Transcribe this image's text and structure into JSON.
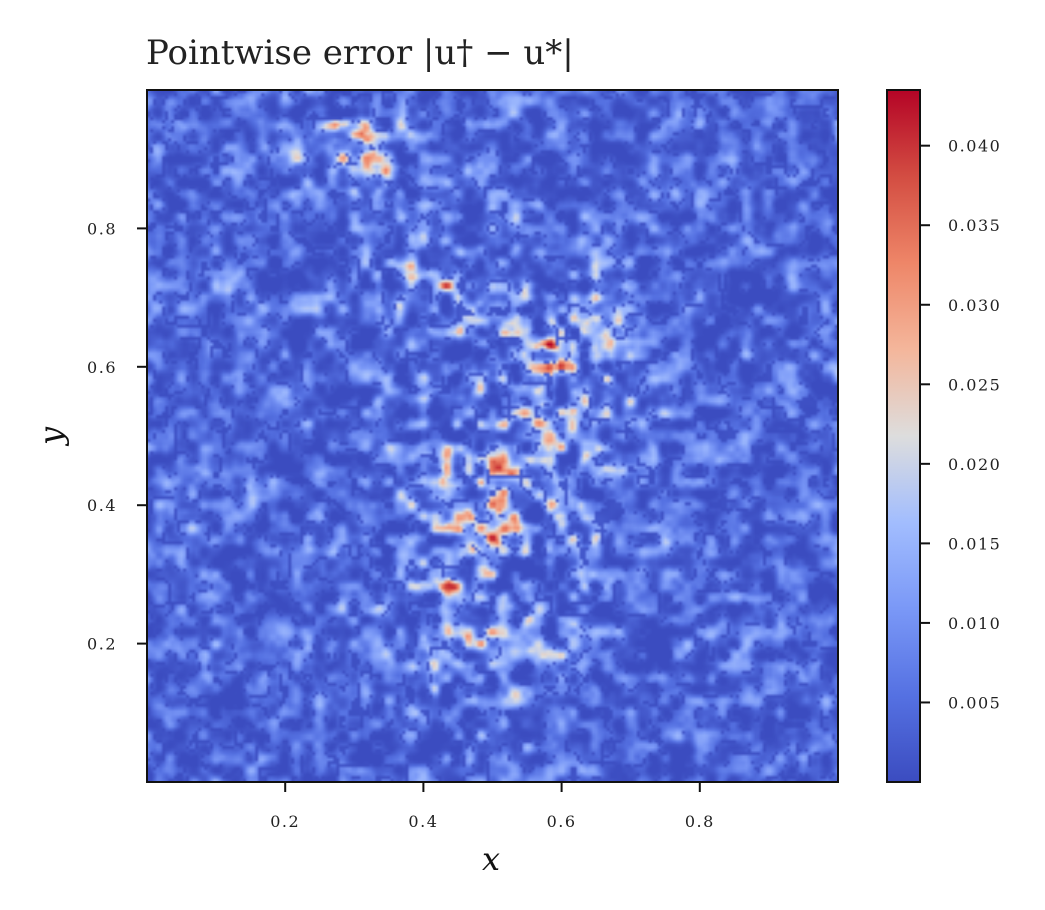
{
  "chart_data": {
    "type": "heatmap",
    "title": "Pointwise error |u† − u*|",
    "xlabel": "x",
    "ylabel": "y",
    "xlim": [
      0.0,
      1.0
    ],
    "ylim": [
      0.0,
      1.0
    ],
    "xticks": [
      0.2,
      0.4,
      0.6,
      0.8
    ],
    "yticks": [
      0.2,
      0.4,
      0.6,
      0.8
    ],
    "xtick_labels": [
      "0.2",
      "0.4",
      "0.6",
      "0.8"
    ],
    "ytick_labels": [
      "0.2",
      "0.4",
      "0.6",
      "0.8"
    ],
    "colormap": "coolwarm",
    "colorbar": {
      "min": 0.0,
      "max": 0.0435,
      "ticks": [
        0.005,
        0.01,
        0.015,
        0.02,
        0.025,
        0.03,
        0.035,
        0.04
      ],
      "tick_labels": [
        "0.005",
        "0.010",
        "0.015",
        "0.020",
        "0.025",
        "0.030",
        "0.035",
        "0.040"
      ]
    },
    "high_error_regions": [
      {
        "x": 0.53,
        "y": 0.47,
        "peak": 0.035
      },
      {
        "x": 0.63,
        "y": 0.62,
        "peak": 0.034
      },
      {
        "x": 0.31,
        "y": 0.93,
        "peak": 0.043
      },
      {
        "x": 0.46,
        "y": 0.73,
        "peak": 0.028
      }
    ],
    "grid": false
  },
  "colors": {
    "low": "#3b4cc0",
    "mid": "#dddddd",
    "high": "#b40426"
  }
}
